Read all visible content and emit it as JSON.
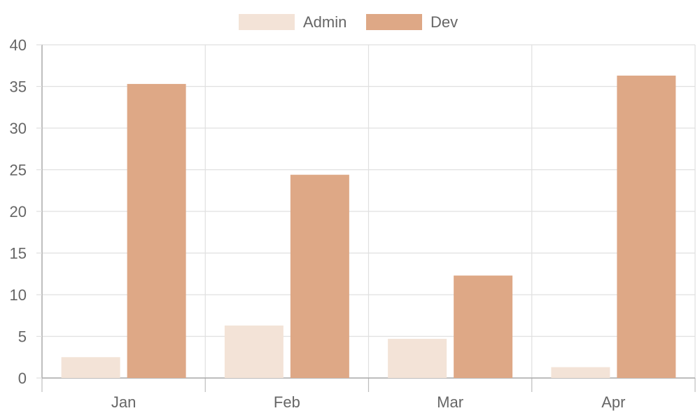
{
  "chart_data": {
    "type": "bar",
    "categories": [
      "Jan",
      "Feb",
      "Mar",
      "Apr"
    ],
    "series": [
      {
        "name": "Admin",
        "values": [
          2.5,
          6.3,
          4.7,
          1.3
        ],
        "color": "#f3e3d7"
      },
      {
        "name": "Dev",
        "values": [
          35.3,
          24.4,
          12.3,
          36.3
        ],
        "color": "#dea886"
      }
    ],
    "title": "",
    "xlabel": "",
    "ylabel": "",
    "ylim": [
      0,
      40
    ],
    "yticks": [
      "0",
      "5",
      "10",
      "15",
      "20",
      "25",
      "30",
      "35",
      "40"
    ],
    "grid": true,
    "legend_position": "top"
  }
}
